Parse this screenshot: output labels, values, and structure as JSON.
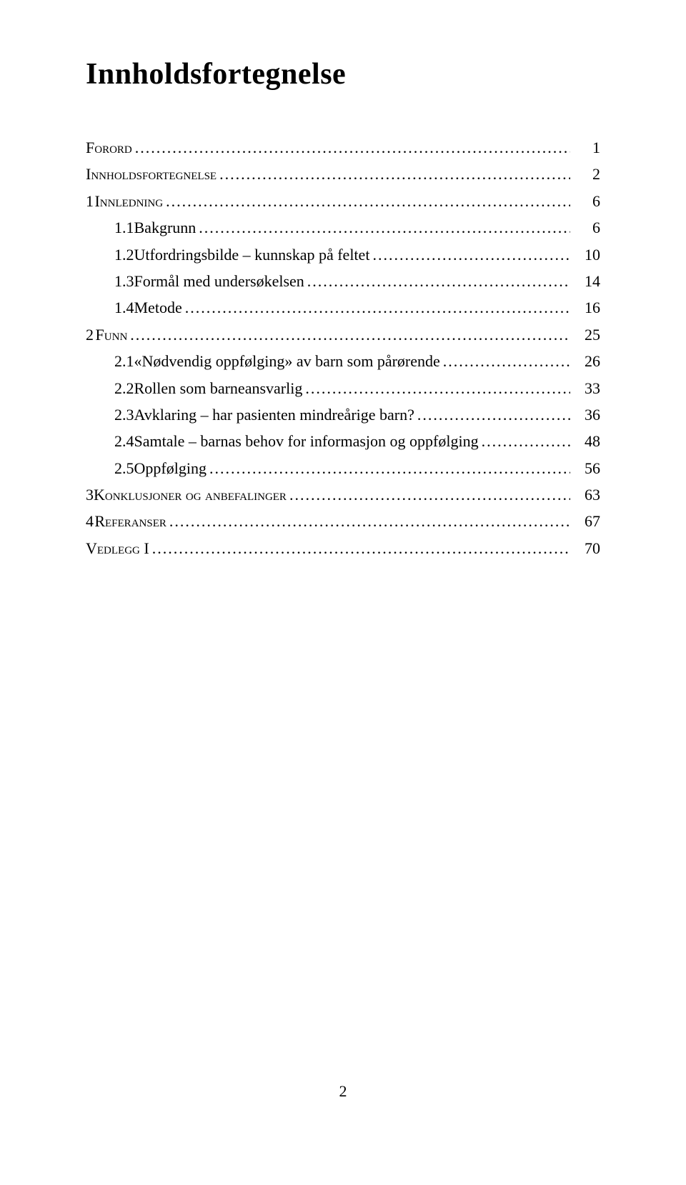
{
  "title": "Innholdsfortegnelse",
  "footer_page_number": "2",
  "toc": {
    "forord": {
      "label": "Forord",
      "page": "1"
    },
    "innholds": {
      "label": "Innholdsfortegnelse",
      "page": "2"
    },
    "s1": {
      "num": "1",
      "label": "Innledning",
      "page": "6"
    },
    "s1_1": {
      "num": "1.1",
      "label": "Bakgrunn",
      "page": "6"
    },
    "s1_2": {
      "num": "1.2",
      "label": "Utfordringsbilde – kunnskap på feltet",
      "page": "10"
    },
    "s1_3": {
      "num": "1.3",
      "label": "Formål med undersøkelsen",
      "page": "14"
    },
    "s1_4": {
      "num": "1.4",
      "label": "Metode",
      "page": "16"
    },
    "s2": {
      "num": "2",
      "label": "Funn",
      "page": "25"
    },
    "s2_1": {
      "num": "2.1",
      "label": "«Nødvendig oppfølging» av barn som pårørende",
      "page": "26"
    },
    "s2_2": {
      "num": "2.2",
      "label": "Rollen som barneansvarlig",
      "page": "33"
    },
    "s2_3": {
      "num": "2.3",
      "label": "Avklaring – har pasienten mindreårige barn?",
      "page": "36"
    },
    "s2_4": {
      "num": "2.4",
      "label": "Samtale – barnas behov for informasjon og oppfølging",
      "page": "48"
    },
    "s2_5": {
      "num": "2.5",
      "label": "Oppfølging",
      "page": "56"
    },
    "s3": {
      "num": "3",
      "label": "Konklusjoner og anbefalinger",
      "page": "63"
    },
    "s4": {
      "num": "4",
      "label": "Referanser",
      "page": "67"
    },
    "vedlegg": {
      "label": "Vedlegg I",
      "page": "70"
    }
  }
}
